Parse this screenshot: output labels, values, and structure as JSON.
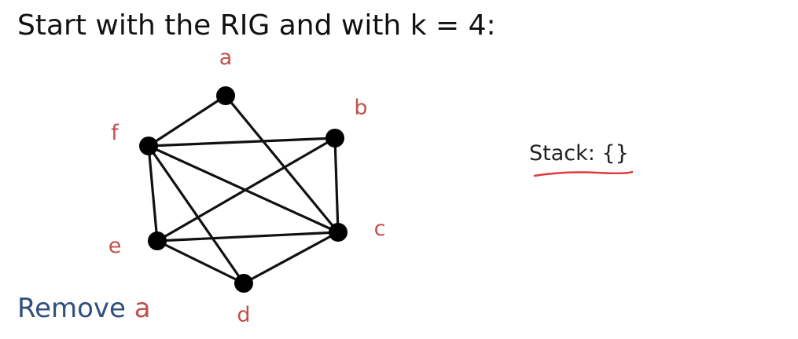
{
  "slide": {
    "title": "Start with the RIG and with k = 4:"
  },
  "graph": {
    "nodes": [
      {
        "id": "a",
        "label": "a"
      },
      {
        "id": "b",
        "label": "b"
      },
      {
        "id": "c",
        "label": "c"
      },
      {
        "id": "d",
        "label": "d"
      },
      {
        "id": "e",
        "label": "e"
      },
      {
        "id": "f",
        "label": "f"
      }
    ],
    "edges": [
      [
        "a",
        "f"
      ],
      [
        "a",
        "c"
      ],
      [
        "f",
        "b"
      ],
      [
        "f",
        "c"
      ],
      [
        "f",
        "e"
      ],
      [
        "f",
        "d"
      ],
      [
        "b",
        "c"
      ],
      [
        "b",
        "e"
      ],
      [
        "e",
        "c"
      ],
      [
        "e",
        "d"
      ],
      [
        "c",
        "d"
      ]
    ]
  },
  "stack": {
    "text": "Stack: {}"
  },
  "action": {
    "verb": "Remove",
    "target": "a"
  },
  "colors": {
    "text": "#111111",
    "node_fill": "#000000",
    "edge": "#111111",
    "label": "#c0504d",
    "verb": "#2f4f7f",
    "underline": "#e0393a"
  }
}
